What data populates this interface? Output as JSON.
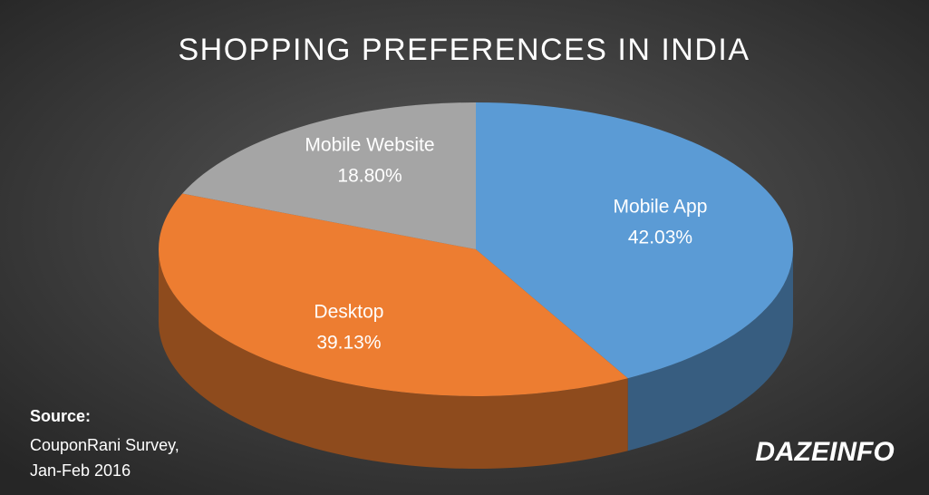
{
  "chart_data": {
    "type": "pie3d",
    "title": "SHOPPING PREFERENCES IN INDIA",
    "categories": [
      "Mobile App",
      "Desktop",
      "Mobile Website"
    ],
    "values": [
      42.03,
      39.13,
      18.8
    ],
    "value_labels": [
      "42.03%",
      "39.13%",
      "18.80%"
    ],
    "colors": [
      "#5b9bd5",
      "#ed7d31",
      "#a5a5a5"
    ],
    "source_label": "Source:",
    "source": [
      "CouponRani Survey,",
      "Jan-Feb 2016"
    ],
    "logo": "DAZEINFO"
  }
}
